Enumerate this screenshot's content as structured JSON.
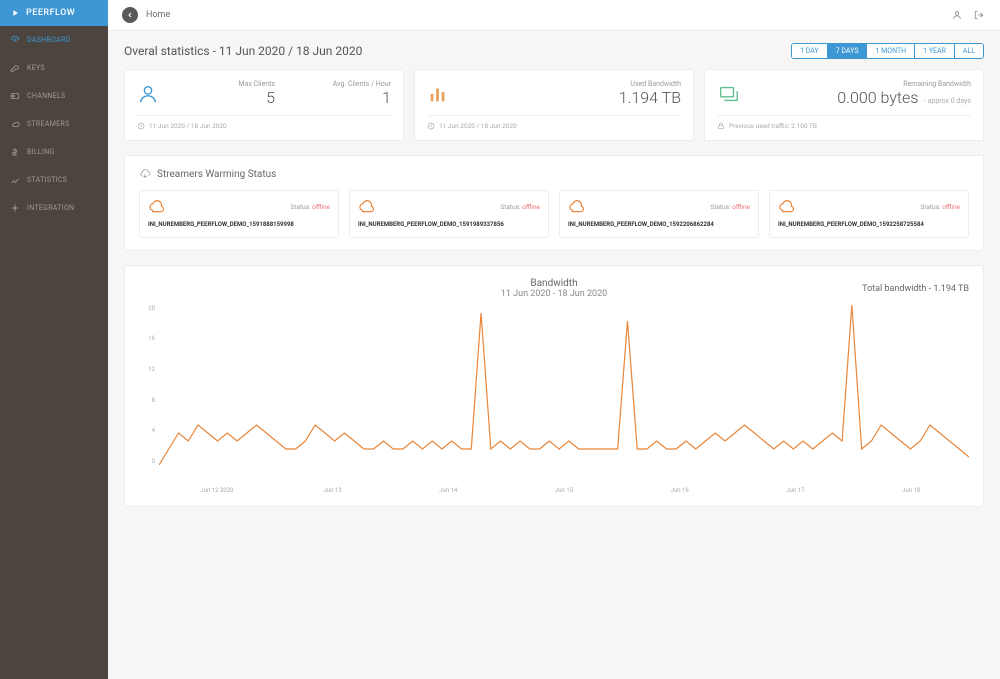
{
  "brand": "PEERFLOW",
  "colors": {
    "accent": "#3d97d4",
    "sidebar_bg": "#4b443f",
    "sidebar_text": "#a09a94",
    "chart_line": "#e8863b",
    "offline": "#e97474",
    "card_bg": "#ffffff",
    "page_bg": "#f7f6f4"
  },
  "sidebar": {
    "items": [
      {
        "label": "DASHBOARD",
        "active": true
      },
      {
        "label": "KEYS",
        "active": false
      },
      {
        "label": "CHANNELS",
        "active": false
      },
      {
        "label": "STREAMERS",
        "active": false
      },
      {
        "label": "BILLING",
        "active": false
      },
      {
        "label": "STATISTICS",
        "active": false
      },
      {
        "label": "INTEGRATION",
        "active": false
      }
    ]
  },
  "topbar": {
    "breadcrumb": "Home"
  },
  "header": {
    "title": "Overal statistics - 11 Jun 2020 / 18 Jun 2020",
    "ranges": [
      {
        "label": "1 DAY",
        "active": false
      },
      {
        "label": "7 DAYS",
        "active": true
      },
      {
        "label": "1 MONTH",
        "active": false
      },
      {
        "label": "1 YEAR",
        "active": false
      },
      {
        "label": "ALL",
        "active": false
      }
    ]
  },
  "stats": {
    "clients": {
      "max_label": "Max Clients",
      "max_value": "5",
      "avg_label": "Avg. Clients / Hour",
      "avg_value": "1",
      "range_note": "11 Jun 2020 / 18 Jun 2020"
    },
    "bandwidth": {
      "label": "Used Bandwidth",
      "value": "1.194 TB",
      "range_note": "11 Jun 2020 / 18 Jun 2020"
    },
    "remaining": {
      "label": "Remaining Bandwidth",
      "value": "0.000 bytes",
      "suffix": "- approx 0 days",
      "note": "Previous used traffic: 2.100 TB"
    }
  },
  "streamers_panel": {
    "title": "Streamers Warming Status",
    "status_label": "Status:",
    "status_value": "offline",
    "items": [
      {
        "name": "INI_NUREMBERG_PEERFLOW_DEMO_1591888159998"
      },
      {
        "name": "INI_NUREMBERG_PEERFLOW_DEMO_1591989337856"
      },
      {
        "name": "INI_NUREMBERG_PEERFLOW_DEMO_1592206862284"
      },
      {
        "name": "INI_NUREMBERG_PEERFLOW_DEMO_1592258725584"
      }
    ]
  },
  "chart": {
    "title": "Bandwidth",
    "subtitle": "11 Jun 2020 - 18 Jun 2020",
    "total_label": "Total bandwidth - 1.194 TB",
    "type": "line",
    "line_color": "#e8863b",
    "line_width": 1.2,
    "background": "#ffffff",
    "y": {
      "min": 0,
      "max": 20,
      "ticks": [
        0,
        4,
        8,
        12,
        16,
        20
      ]
    },
    "x_labels": [
      "Jun 12 2020",
      "Jun 13",
      "Jun 14",
      "Jun 15",
      "Jun 16",
      "Jun 17",
      "Jun 18"
    ],
    "series": [
      0,
      2,
      4,
      3,
      5,
      4,
      3,
      4,
      3,
      4,
      5,
      4,
      3,
      2,
      2,
      3,
      5,
      4,
      3,
      4,
      3,
      2,
      2,
      3,
      2,
      2,
      3,
      2,
      3,
      2,
      3,
      2,
      2,
      19,
      2,
      3,
      2,
      3,
      2,
      2,
      3,
      2,
      3,
      2,
      2,
      2,
      2,
      2,
      18,
      2,
      2,
      3,
      2,
      2,
      3,
      2,
      3,
      4,
      3,
      4,
      5,
      4,
      3,
      2,
      3,
      2,
      3,
      2,
      3,
      4,
      3,
      20,
      2,
      3,
      5,
      4,
      3,
      2,
      3,
      5,
      4,
      3,
      2,
      1
    ]
  }
}
